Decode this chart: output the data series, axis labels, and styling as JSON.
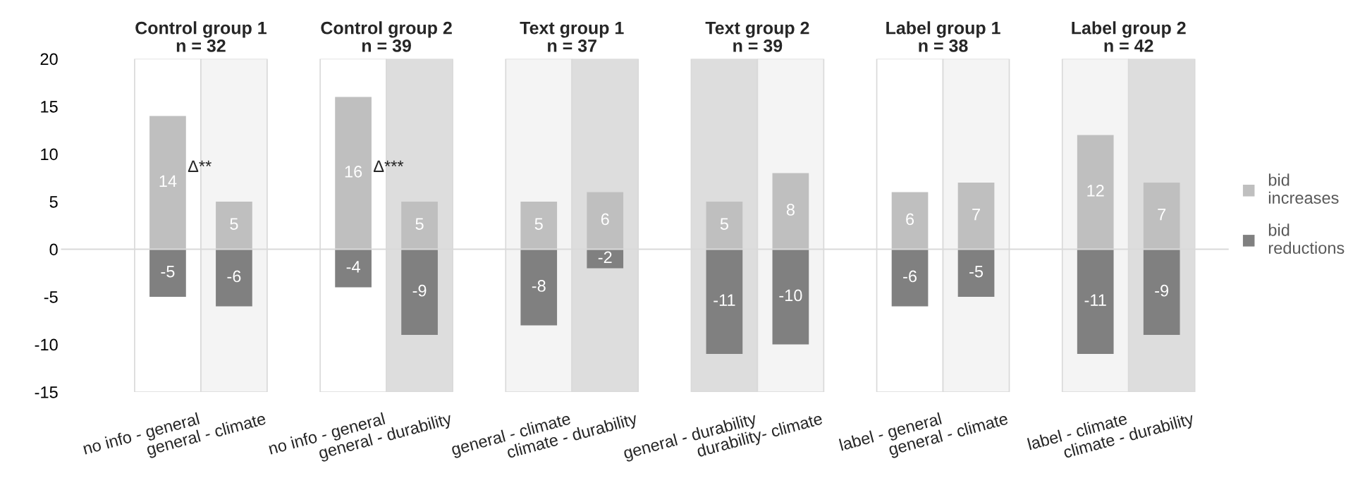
{
  "chart_data": {
    "type": "bar",
    "stacked": true,
    "categories": [
      "no info - general",
      "general - climate",
      "no info - general",
      "general - durability",
      "general - climate",
      "climate - durability",
      "general - durability",
      "durability- climate",
      "label - general",
      "general - climate",
      "label - climate",
      "climate - durability"
    ],
    "series": [
      {
        "name": "bid\nincreases",
        "color": "#bfbfbf",
        "values": [
          14,
          5,
          16,
          5,
          5,
          6,
          5,
          8,
          6,
          7,
          12,
          7
        ]
      },
      {
        "name": "bid\nreductions",
        "color": "#808080",
        "values": [
          -5,
          -6,
          -4,
          -9,
          -8,
          -2,
          -11,
          -10,
          -6,
          -5,
          -11,
          -9
        ]
      }
    ],
    "data_labels": true,
    "ylim": [
      -15,
      20
    ],
    "yticks": [
      -15,
      -10,
      -5,
      0,
      5,
      10,
      15,
      20
    ],
    "legend": "right",
    "annotations": [
      "Control group 1\nn = 32",
      "Control group 2\nn = 39",
      "Text group 1\nn = 37",
      "Text group 2\nn = 39",
      "Label group 1\nn = 38",
      "Label group 2\nn = 42",
      "Δ**",
      "Δ***"
    ]
  }
}
